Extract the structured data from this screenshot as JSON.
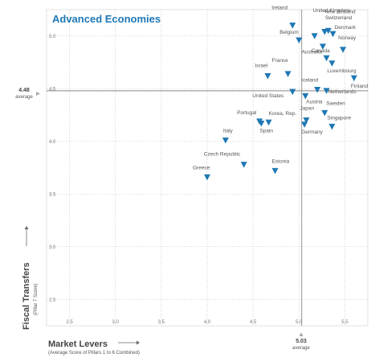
{
  "chart_data": {
    "type": "scatter",
    "title": "Advanced Economies",
    "xlabel": "Market Levers",
    "xlabel_sub": "(Average Score of Pillars 1 to 6 Combined)",
    "ylabel": "Fiscal Transfers",
    "ylabel_sub": "(Pillar 7 Score)",
    "xlim": [
      2.25,
      5.75
    ],
    "ylim": [
      2.25,
      5.25
    ],
    "x_ticks": [
      "2.5",
      "3.0",
      "3.5",
      "4.0",
      "4.5",
      "5.0",
      "5.5"
    ],
    "y_ticks": [
      "2.5",
      "3.0",
      "3.5",
      "4.0",
      "4.5",
      "5.0"
    ],
    "grid": "dotted",
    "marker": "triangle-down",
    "marker_color": "#1f78b4",
    "average_x": {
      "value": "5.03",
      "label": "average"
    },
    "average_y": {
      "value": "4.48",
      "label": "average"
    },
    "points": [
      {
        "label": "Ireland",
        "x": 4.93,
        "y": 5.1
      },
      {
        "label": "United Kingdom",
        "x": 5.17,
        "y": 5.0
      },
      {
        "label": "New Zealand",
        "x": 5.28,
        "y": 5.04
      },
      {
        "label": "Switzerland",
        "x": 5.32,
        "y": 5.05
      },
      {
        "label": "Denmark",
        "x": 5.37,
        "y": 5.02
      },
      {
        "label": "Belgium",
        "x": 5.0,
        "y": 4.96
      },
      {
        "label": "Norway",
        "x": 5.48,
        "y": 4.87
      },
      {
        "label": "Canada",
        "x": 5.26,
        "y": 4.9
      },
      {
        "label": "Australia",
        "x": 5.3,
        "y": 4.79
      },
      {
        "label": "Luxembourg",
        "x": 5.36,
        "y": 4.74
      },
      {
        "label": "Israel",
        "x": 4.66,
        "y": 4.62
      },
      {
        "label": "France",
        "x": 4.88,
        "y": 4.64
      },
      {
        "label": "Finland",
        "x": 5.6,
        "y": 4.6
      },
      {
        "label": "Iceland",
        "x": 5.2,
        "y": 4.49
      },
      {
        "label": "Netherlands",
        "x": 5.3,
        "y": 4.48
      },
      {
        "label": "United States",
        "x": 4.93,
        "y": 4.47
      },
      {
        "label": "Austria",
        "x": 5.07,
        "y": 4.43
      },
      {
        "label": "Sweden",
        "x": 5.28,
        "y": 4.27
      },
      {
        "label": "Portugal",
        "x": 4.57,
        "y": 4.19
      },
      {
        "label": "Korea, Rep.",
        "x": 4.67,
        "y": 4.18
      },
      {
        "label": "Spain",
        "x": 4.59,
        "y": 4.17
      },
      {
        "label": "Japan",
        "x": 5.08,
        "y": 4.2
      },
      {
        "label": "Germany",
        "x": 5.06,
        "y": 4.16
      },
      {
        "label": "Singapore",
        "x": 5.36,
        "y": 4.14
      },
      {
        "label": "Italy",
        "x": 4.2,
        "y": 4.01
      },
      {
        "label": "Czech Republic",
        "x": 4.4,
        "y": 3.78
      },
      {
        "label": "Estonia",
        "x": 4.74,
        "y": 3.72
      },
      {
        "label": "Greece",
        "x": 4.0,
        "y": 3.66
      }
    ]
  }
}
